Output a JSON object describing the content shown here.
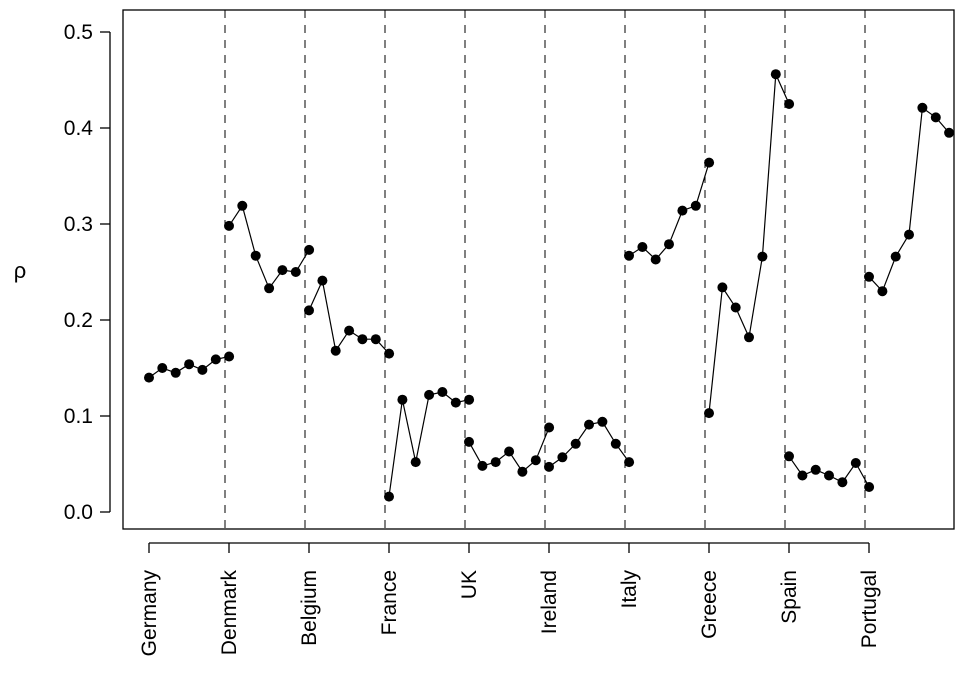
{
  "chart_data": {
    "type": "line",
    "title": "",
    "xlabel": "",
    "ylabel": "ρ",
    "ylim": [
      0,
      0.5
    ],
    "yticks": [
      "0.0",
      "0.1",
      "0.2",
      "0.3",
      "0.4",
      "0.5"
    ],
    "ytick_values": [
      0,
      0.1,
      0.2,
      0.3,
      0.4,
      0.5
    ],
    "grid": false,
    "legend": "none",
    "group_separators": "dashed vertical lines between countries",
    "colors": {
      "marker": "#000000",
      "line": "#000000",
      "separator": "#000000"
    },
    "groups": [
      {
        "name": "Germany",
        "values": [
          0.14,
          0.15,
          0.145,
          0.154,
          0.148,
          0.159,
          0.162
        ]
      },
      {
        "name": "Denmark",
        "values": [
          0.298,
          0.319,
          0.267,
          0.233,
          0.252,
          0.25,
          0.273
        ]
      },
      {
        "name": "Belgium",
        "values": [
          0.21,
          0.241,
          0.168,
          0.189,
          0.18,
          0.18,
          0.165
        ]
      },
      {
        "name": "France",
        "values": [
          0.016,
          0.117,
          0.052,
          0.122,
          0.125,
          0.114,
          0.117
        ]
      },
      {
        "name": "UK",
        "values": [
          0.073,
          0.048,
          0.052,
          0.063,
          0.042,
          0.054,
          0.088
        ]
      },
      {
        "name": "Ireland",
        "values": [
          0.047,
          0.057,
          0.071,
          0.091,
          0.094,
          0.071,
          0.052
        ]
      },
      {
        "name": "Italy",
        "values": [
          0.267,
          0.276,
          0.263,
          0.279,
          0.314,
          0.319,
          0.364
        ]
      },
      {
        "name": "Greece",
        "values": [
          0.103,
          0.234,
          0.213,
          0.182,
          0.266,
          0.456,
          0.425
        ]
      },
      {
        "name": "Spain",
        "values": [
          0.058,
          0.038,
          0.044,
          0.038,
          0.031,
          0.051,
          0.026
        ]
      },
      {
        "name": "Portugal",
        "values": [
          0.245,
          0.23,
          0.266,
          0.289,
          0.421,
          0.411,
          0.395
        ]
      }
    ]
  }
}
